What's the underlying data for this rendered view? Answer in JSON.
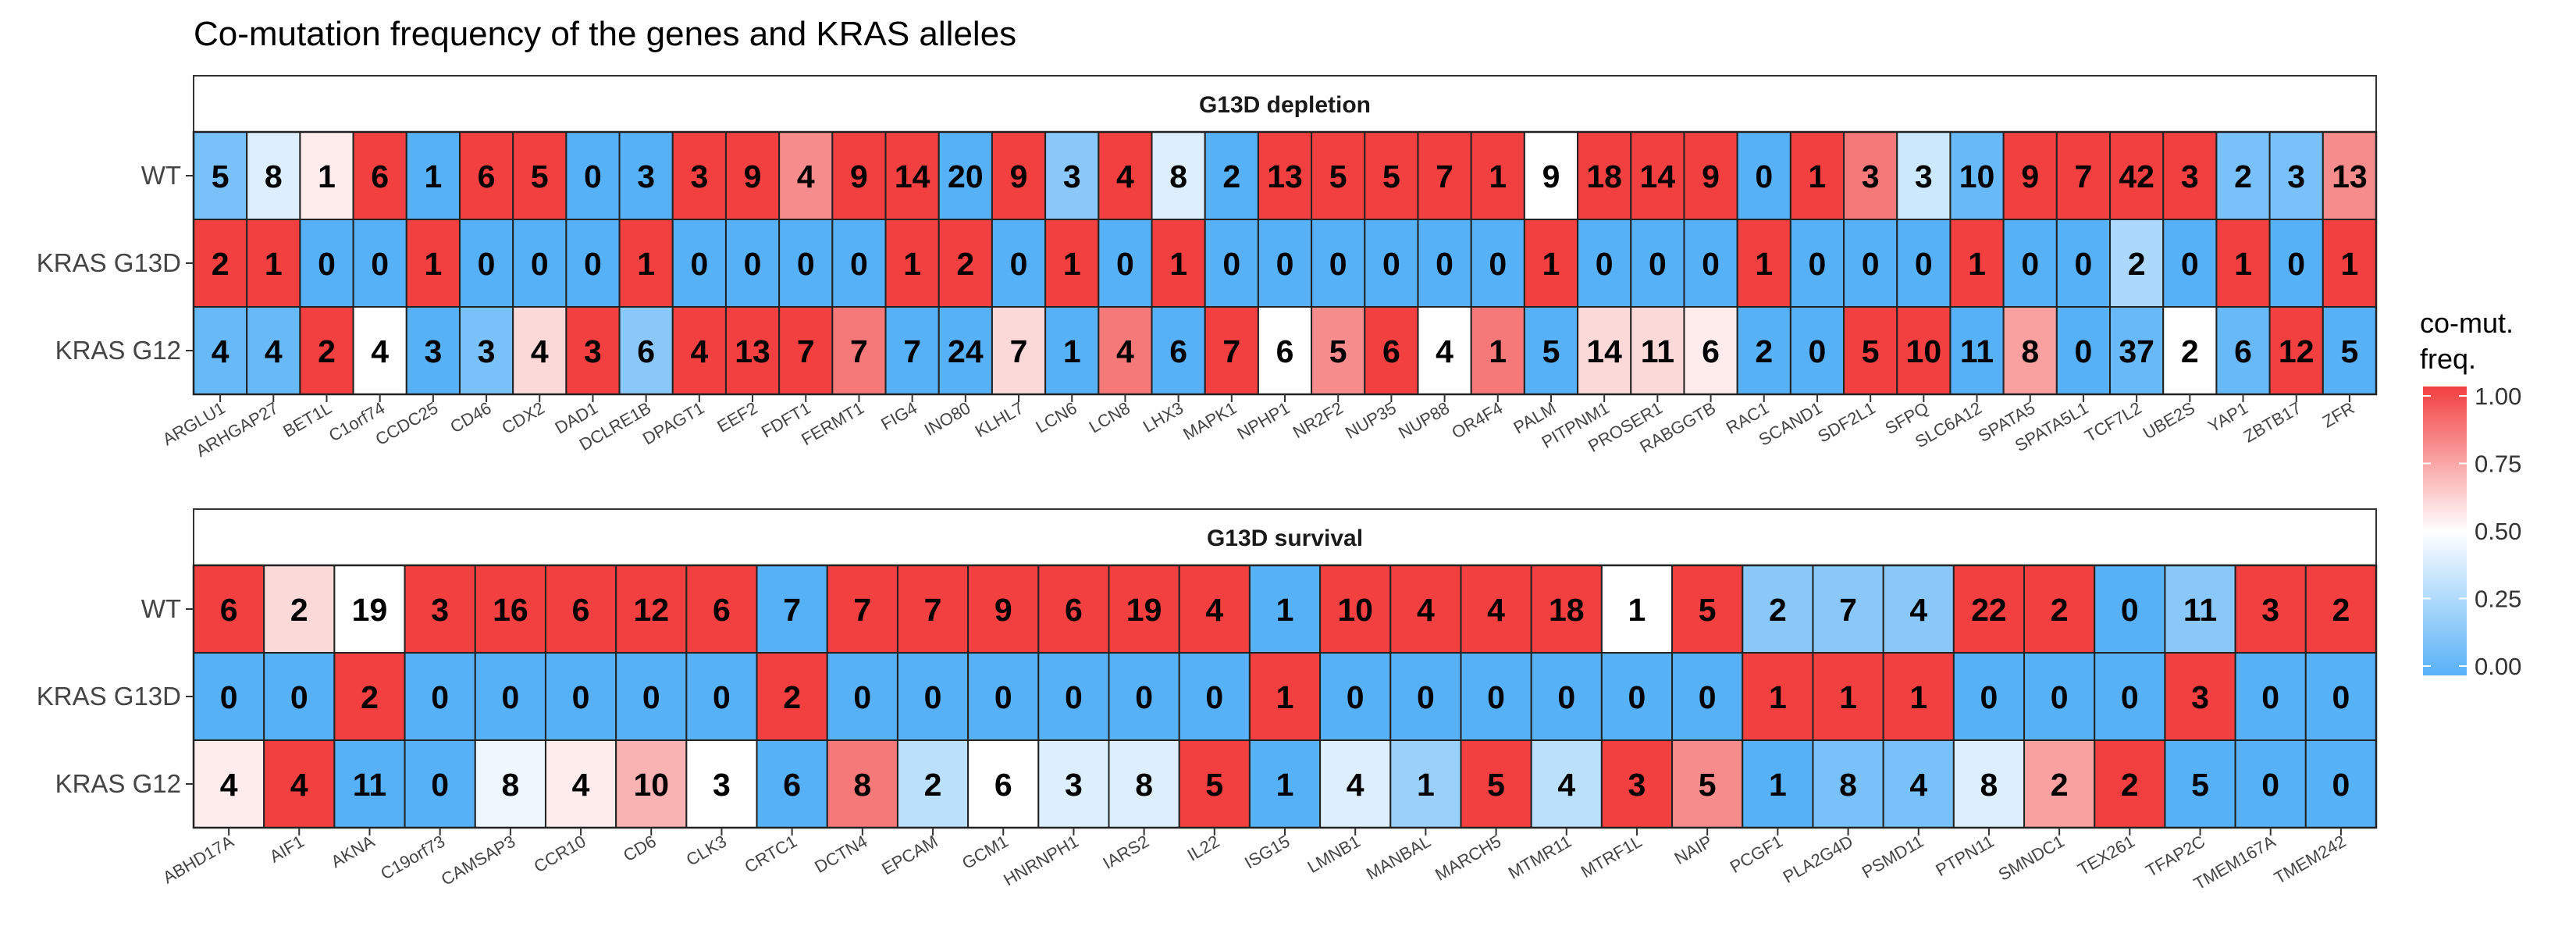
{
  "chart_data": {
    "type": "heatmap",
    "title": "Co-mutation frequency of the genes and KRAS alleles",
    "rows": [
      "WT",
      "KRAS G13D",
      "KRAS G12"
    ],
    "legend": {
      "title_lines": [
        "co-mut.",
        "freq."
      ],
      "ticks": [
        "1.00",
        "0.75",
        "0.50",
        "0.25",
        "0.00"
      ],
      "tick_values": [
        1.0,
        0.75,
        0.5,
        0.25,
        0.0
      ],
      "range": [
        0,
        1
      ]
    },
    "colors": {
      "low": "#56B1F7",
      "mid": "#FFFFFF",
      "high": "#F24040"
    },
    "panels": [
      {
        "title": "G13D depletion",
        "genes": [
          "ARGLU1",
          "ARHGAP27",
          "BET1L",
          "C1orf74",
          "CCDC25",
          "CD46",
          "CDX2",
          "DAD1",
          "DCLRE1B",
          "DPAGT1",
          "EEF2",
          "FDFT1",
          "FERMT1",
          "FIG4",
          "INO80",
          "KLHL7",
          "LCN6",
          "LCN8",
          "LHX3",
          "MAPK1",
          "NPHP1",
          "NR2F2",
          "NUP35",
          "NUP88",
          "OR4F4",
          "PALM",
          "PITPNM1",
          "PROSER1",
          "RABGGTB",
          "RAC1",
          "SCAND1",
          "SDF2L1",
          "SFPQ",
          "SLC6A12",
          "SPATA5",
          "SPATA5L1",
          "TCF7L2",
          "UBE2S",
          "YAP1",
          "ZBTB17",
          "ZFR"
        ],
        "counts": [
          [
            5,
            8,
            1,
            6,
            1,
            6,
            5,
            0,
            3,
            3,
            9,
            4,
            9,
            14,
            20,
            9,
            3,
            4,
            8,
            2,
            13,
            5,
            5,
            7,
            1,
            9,
            18,
            14,
            9,
            0,
            1,
            3,
            3,
            10,
            9,
            7,
            42,
            3,
            2,
            3,
            13
          ],
          [
            2,
            1,
            0,
            0,
            1,
            0,
            0,
            0,
            1,
            0,
            0,
            0,
            0,
            1,
            2,
            0,
            1,
            0,
            1,
            0,
            0,
            0,
            0,
            0,
            0,
            1,
            0,
            0,
            0,
            1,
            0,
            0,
            0,
            1,
            0,
            0,
            2,
            0,
            1,
            0,
            1
          ],
          [
            4,
            4,
            2,
            4,
            3,
            3,
            4,
            3,
            6,
            4,
            13,
            7,
            7,
            7,
            24,
            7,
            1,
            4,
            6,
            7,
            6,
            5,
            6,
            4,
            1,
            5,
            14,
            11,
            6,
            2,
            0,
            5,
            10,
            11,
            8,
            0,
            37,
            2,
            6,
            12,
            5
          ]
        ],
        "freq": [
          [
            0.1,
            0.4,
            0.55,
            1.0,
            0.0,
            1.0,
            1.0,
            0.0,
            0.0,
            1.0,
            1.0,
            0.8,
            1.0,
            1.0,
            0.0,
            1.0,
            0.15,
            1.0,
            0.4,
            0.0,
            1.0,
            1.0,
            1.0,
            1.0,
            1.0,
            0.5,
            1.0,
            1.0,
            1.0,
            0.0,
            1.0,
            0.85,
            0.35,
            0.05,
            1.0,
            1.0,
            1.0,
            1.0,
            0.1,
            0.1,
            0.8
          ],
          [
            1.0,
            1.0,
            0.0,
            0.0,
            1.0,
            0.0,
            0.0,
            0.0,
            1.0,
            0.0,
            0.0,
            0.0,
            0.0,
            1.0,
            1.0,
            0.0,
            1.0,
            0.0,
            1.0,
            0.0,
            0.0,
            0.0,
            0.0,
            0.0,
            0.0,
            1.0,
            0.0,
            0.0,
            0.0,
            1.0,
            0.0,
            0.0,
            0.0,
            1.0,
            0.0,
            0.0,
            0.25,
            0.0,
            1.0,
            0.0,
            1.0
          ],
          [
            0.05,
            0.05,
            1.0,
            0.5,
            0.0,
            0.1,
            0.6,
            1.0,
            0.15,
            1.0,
            1.0,
            1.0,
            0.85,
            0.0,
            0.0,
            0.6,
            0.0,
            0.85,
            0.0,
            1.0,
            0.5,
            0.8,
            1.0,
            0.5,
            0.85,
            0.0,
            0.6,
            0.6,
            0.55,
            0.0,
            0.0,
            1.0,
            1.0,
            0.0,
            0.75,
            0.0,
            0.05,
            0.5,
            0.05,
            1.0,
            0.0
          ]
        ]
      },
      {
        "title": "G13D survival",
        "genes": [
          "ABHD17A",
          "AIF1",
          "AKNA",
          "C19orf73",
          "CAMSAP3",
          "CCR10",
          "CD6",
          "CLK3",
          "CRTC1",
          "DCTN4",
          "EPCAM",
          "GCM1",
          "HNRNPH1",
          "IARS2",
          "IL22",
          "ISG15",
          "LMNB1",
          "MANBAL",
          "MARCH5",
          "MTMR11",
          "MTRF1L",
          "NAIP",
          "PCGF1",
          "PLA2G4D",
          "PSMD11",
          "PTPN11",
          "SMNDC1",
          "TEX261",
          "TFAP2C",
          "TMEM167A",
          "TMEM242"
        ],
        "counts": [
          [
            6,
            2,
            19,
            3,
            16,
            6,
            12,
            6,
            7,
            7,
            7,
            9,
            6,
            19,
            4,
            1,
            10,
            4,
            4,
            18,
            1,
            5,
            2,
            7,
            4,
            22,
            2,
            0,
            11,
            3,
            2
          ],
          [
            0,
            0,
            2,
            0,
            0,
            0,
            0,
            0,
            2,
            0,
            0,
            0,
            0,
            0,
            0,
            1,
            0,
            0,
            0,
            0,
            0,
            0,
            1,
            1,
            1,
            0,
            0,
            0,
            3,
            0,
            0
          ],
          [
            4,
            4,
            11,
            0,
            8,
            4,
            10,
            3,
            6,
            8,
            2,
            6,
            3,
            8,
            5,
            1,
            4,
            1,
            5,
            4,
            3,
            5,
            1,
            8,
            4,
            8,
            2,
            2,
            5,
            0,
            0
          ]
        ],
        "freq": [
          [
            1.0,
            0.6,
            0.5,
            1.0,
            1.0,
            1.0,
            1.0,
            1.0,
            0.0,
            1.0,
            1.0,
            1.0,
            1.0,
            1.0,
            1.0,
            0.0,
            1.0,
            1.0,
            1.0,
            1.0,
            0.5,
            1.0,
            0.15,
            0.15,
            0.15,
            1.0,
            1.0,
            0.0,
            0.15,
            1.0,
            1.0
          ],
          [
            0.0,
            0.0,
            1.0,
            0.0,
            0.0,
            0.0,
            0.0,
            0.0,
            1.0,
            0.0,
            0.0,
            0.0,
            0.0,
            0.0,
            0.0,
            1.0,
            0.0,
            0.0,
            0.0,
            0.0,
            0.0,
            0.0,
            1.0,
            1.0,
            1.0,
            0.0,
            0.0,
            0.0,
            1.0,
            0.0,
            0.0
          ],
          [
            0.55,
            1.0,
            0.0,
            0.0,
            0.45,
            0.55,
            0.7,
            0.5,
            0.0,
            0.85,
            0.3,
            0.5,
            0.4,
            0.4,
            1.0,
            0.0,
            0.4,
            0.2,
            1.0,
            0.3,
            1.0,
            0.8,
            0.0,
            0.1,
            0.1,
            0.4,
            0.75,
            1.0,
            0.0,
            0.0,
            0.0
          ]
        ]
      }
    ]
  }
}
